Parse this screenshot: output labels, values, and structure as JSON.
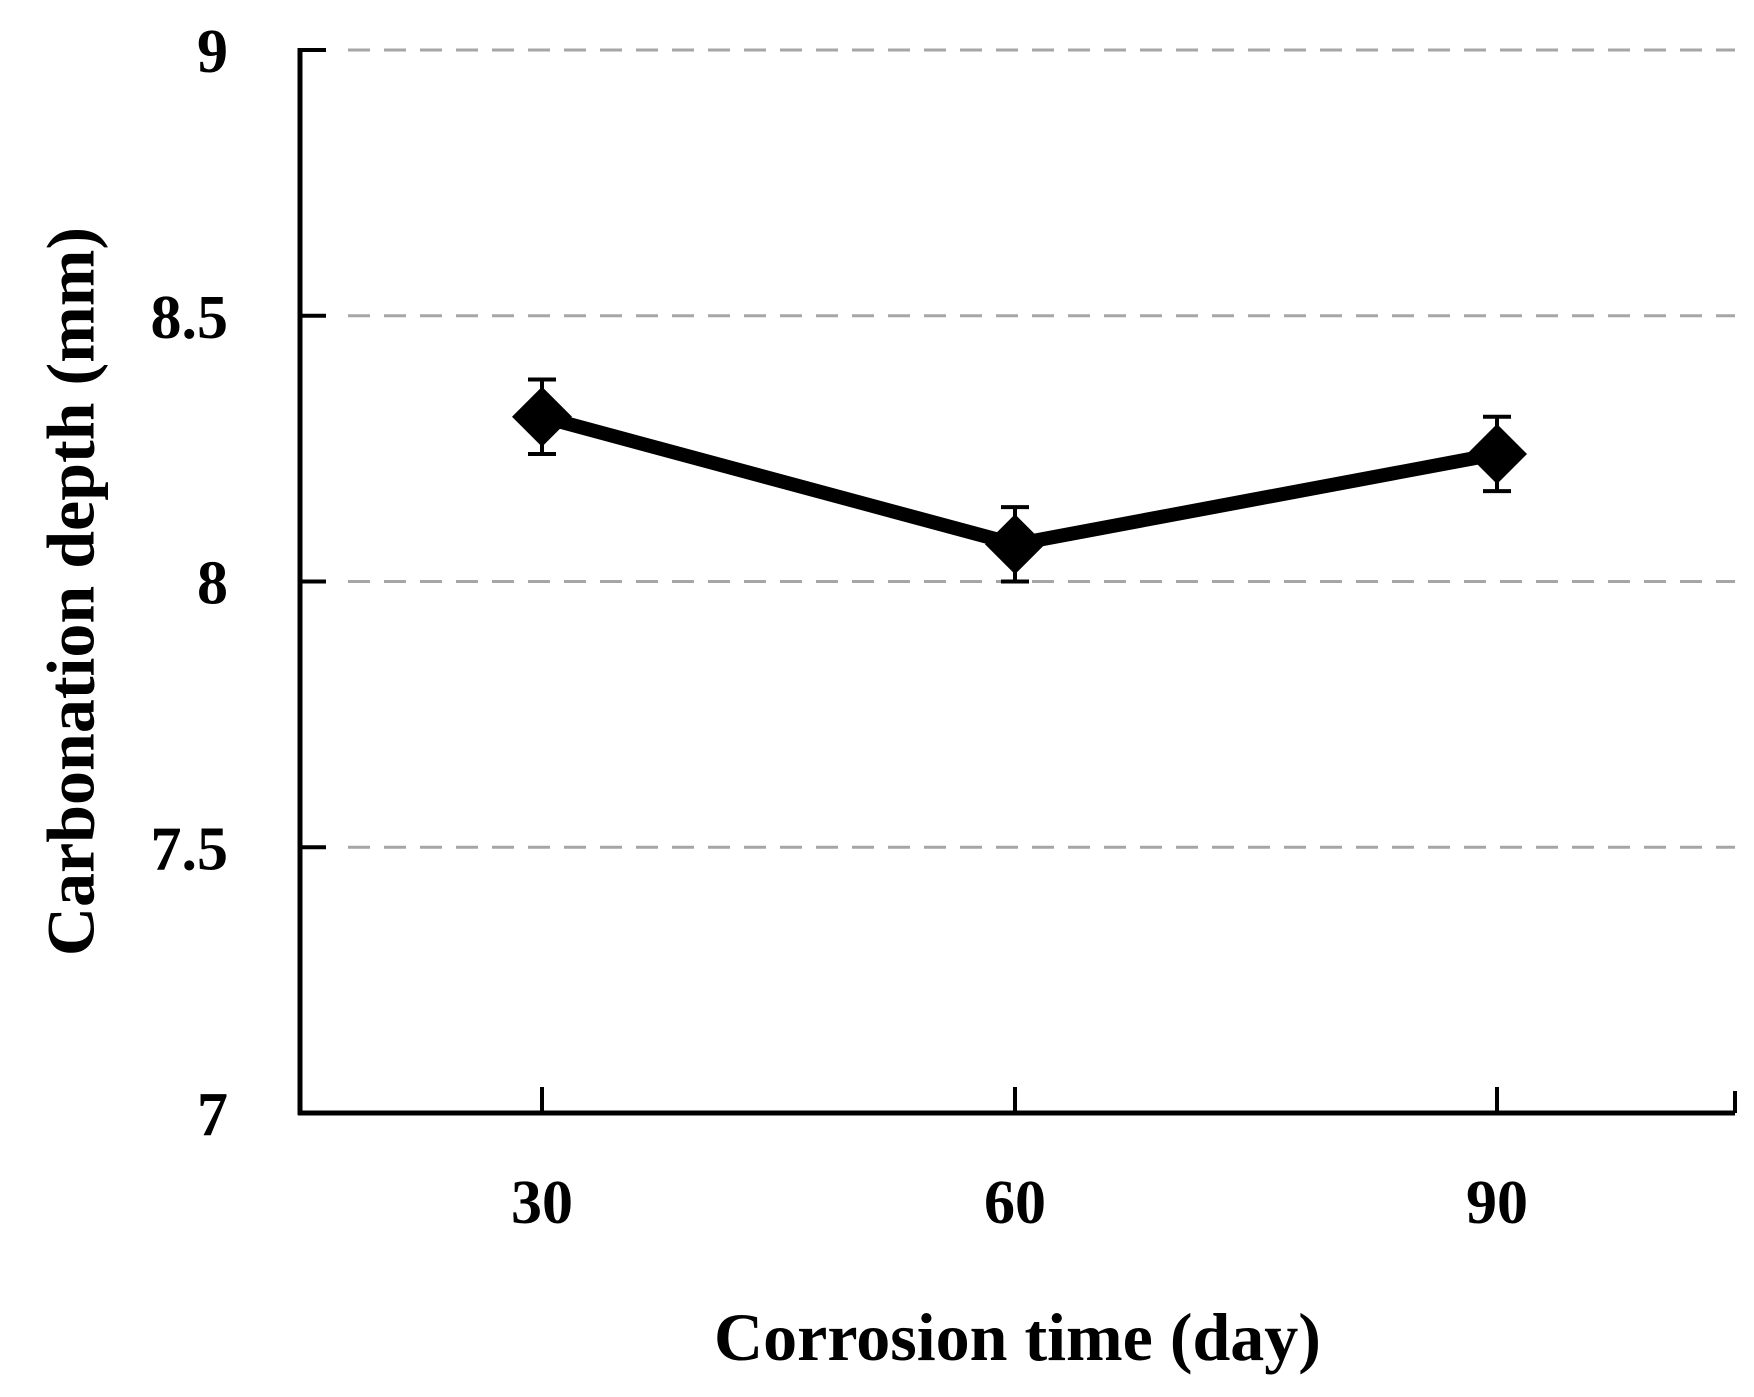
{
  "chart_data": {
    "type": "line",
    "title": "",
    "xlabel": "Corrosion time (day)",
    "ylabel": "Carbonation depth (mm)",
    "categories": [
      "30",
      "60",
      "90"
    ],
    "x": [
      30,
      60,
      90
    ],
    "ylim": [
      7,
      9
    ],
    "yticks": [
      "7",
      "7.5",
      "8",
      "8.5",
      "9"
    ],
    "ytick_values": [
      7,
      7.5,
      8,
      8.5,
      9
    ],
    "grid": true,
    "series": [
      {
        "name": "Carbonation depth",
        "values": [
          8.31,
          8.07,
          8.24
        ],
        "error": [
          0.07,
          0.07,
          0.07
        ],
        "marker": "diamond"
      }
    ],
    "colors": {
      "line": "#000000",
      "grid": "#a6a6a6",
      "axis": "#000000"
    }
  }
}
